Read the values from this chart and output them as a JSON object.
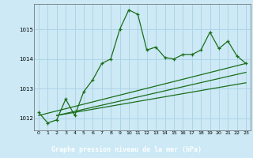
{
  "title": "Graphe pression niveau de la mer (hPa)",
  "bg_color": "#cce9f5",
  "plot_bg_color": "#cce9f5",
  "grid_color": "#aed4e8",
  "line_color": "#1a6e1a",
  "label_bg": "#1a6e1a",
  "label_fg": "#ffffff",
  "xlim": [
    -0.5,
    23.5
  ],
  "ylim": [
    1011.6,
    1015.85
  ],
  "yticks": [
    1012,
    1013,
    1014,
    1015
  ],
  "xticks": [
    0,
    1,
    2,
    3,
    4,
    5,
    6,
    7,
    8,
    9,
    10,
    11,
    12,
    13,
    14,
    15,
    16,
    17,
    18,
    19,
    20,
    21,
    22,
    23
  ],
  "s1_x": [
    0,
    1,
    2,
    3,
    4,
    5,
    6,
    7,
    8,
    9,
    10,
    11,
    12,
    13,
    14,
    15,
    16,
    17,
    18,
    19,
    20,
    21,
    22,
    23
  ],
  "s1_y": [
    1012.2,
    1011.85,
    1011.95,
    1012.65,
    1012.1,
    1012.9,
    1013.3,
    1013.85,
    1014.0,
    1015.0,
    1015.65,
    1015.5,
    1014.3,
    1014.4,
    1014.05,
    1014.0,
    1014.15,
    1014.15,
    1014.3,
    1014.9,
    1014.35,
    1014.6,
    1014.1,
    1013.85
  ],
  "line_a": {
    "x": [
      0,
      23
    ],
    "y": [
      1012.1,
      1013.85
    ]
  },
  "line_b": {
    "x": [
      2,
      23
    ],
    "y": [
      1012.1,
      1013.55
    ]
  },
  "line_c": {
    "x": [
      2,
      23
    ],
    "y": [
      1012.1,
      1013.2
    ]
  }
}
